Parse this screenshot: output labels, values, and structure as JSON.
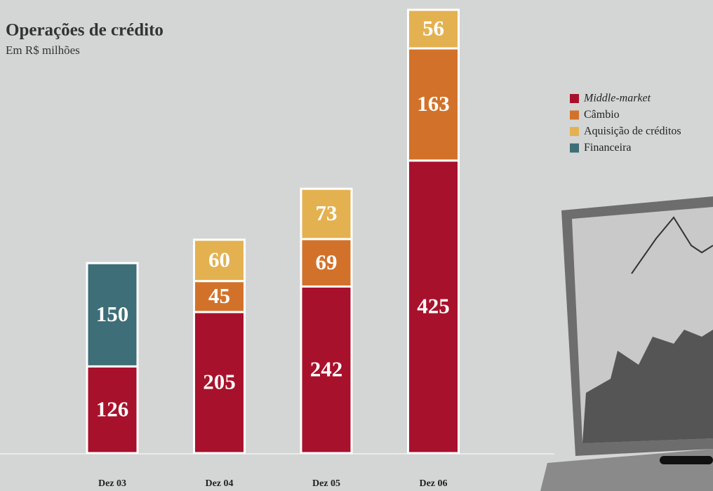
{
  "chart_data": {
    "type": "stacked-bar",
    "title": "Operações de crédito",
    "subtitle": "Em R$ milhões",
    "categories": [
      "Dez 03",
      "Dez 04",
      "Dez 05",
      "Dez 06"
    ],
    "series": [
      {
        "name": "Middle-market",
        "color": "#a8112b",
        "values": [
          126,
          205,
          242,
          425
        ]
      },
      {
        "name": "Câmbio",
        "color": "#d2722a",
        "values": [
          null,
          45,
          69,
          163
        ]
      },
      {
        "name": "Aquisição de créditos",
        "color": "#e3b150",
        "values": [
          null,
          60,
          73,
          56
        ]
      },
      {
        "name": "Financeira",
        "color": "#3e6e78",
        "values": [
          150,
          null,
          null,
          null
        ]
      }
    ],
    "legend": "right"
  }
}
